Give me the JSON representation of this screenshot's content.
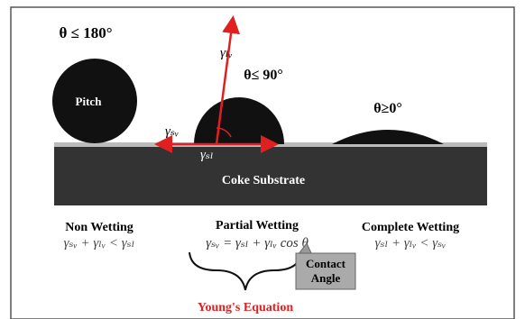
{
  "angles": {
    "non_wetting": "θ ≤ 180°",
    "partial": "θ≤ 90°",
    "complete": "θ≥0°"
  },
  "drop_label": "Pitch",
  "vectors": {
    "lv": "γₗᵥ",
    "sv": "γₛᵥ",
    "sl": "γₛₗ"
  },
  "substrate": "Coke Substrate",
  "regimes": [
    {
      "title": "Non Wetting",
      "equation": "γₛᵥ + γₗᵥ < γₛₗ"
    },
    {
      "title": "Partial Wetting",
      "equation": "γₛᵥ = γₛₗ + γₗᵥ cos θ"
    },
    {
      "title": "Complete Wetting",
      "equation": "γₛₗ + γₗᵥ < γₛᵥ"
    }
  ],
  "callout": [
    "Contact",
    "Angle"
  ],
  "equation_name": "Young's Equation"
}
